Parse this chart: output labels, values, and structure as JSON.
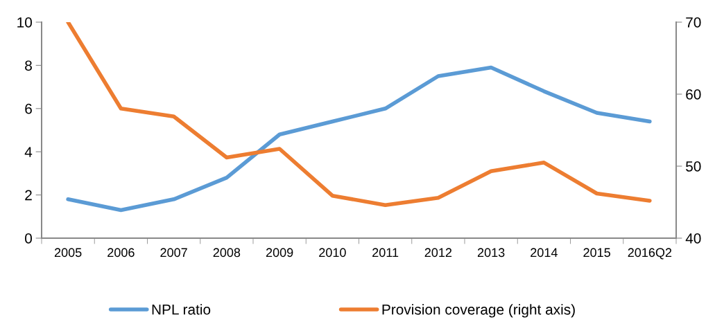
{
  "chart_data": {
    "type": "line",
    "categories": [
      "2005",
      "2006",
      "2007",
      "2008",
      "2009",
      "2010",
      "2011",
      "2012",
      "2013",
      "2014",
      "2015",
      "2016Q2"
    ],
    "series": [
      {
        "name": "NPL ratio",
        "color": "#5b9bd5",
        "values": [
          1.8,
          1.3,
          1.8,
          2.8,
          4.8,
          5.4,
          6.0,
          7.5,
          7.9,
          6.8,
          5.8,
          5.4
        ]
      },
      {
        "name": "Provision coverage (right axis)",
        "color": "#ed7d31",
        "axis": "y2",
        "values": [
          70,
          58.0,
          56.9,
          51.2,
          52.4,
          45.9,
          44.6,
          45.6,
          49.3,
          50.5,
          46.2,
          45.2
        ]
      }
    ],
    "ylim": [
      0,
      10
    ],
    "yticks": [
      0,
      2,
      4,
      6,
      8,
      10
    ],
    "y2lim": [
      40,
      70
    ],
    "y2ticks": [
      40,
      50,
      60,
      70
    ],
    "grid": false,
    "legend": "bottom",
    "marker": "none",
    "line_style": "solid"
  }
}
